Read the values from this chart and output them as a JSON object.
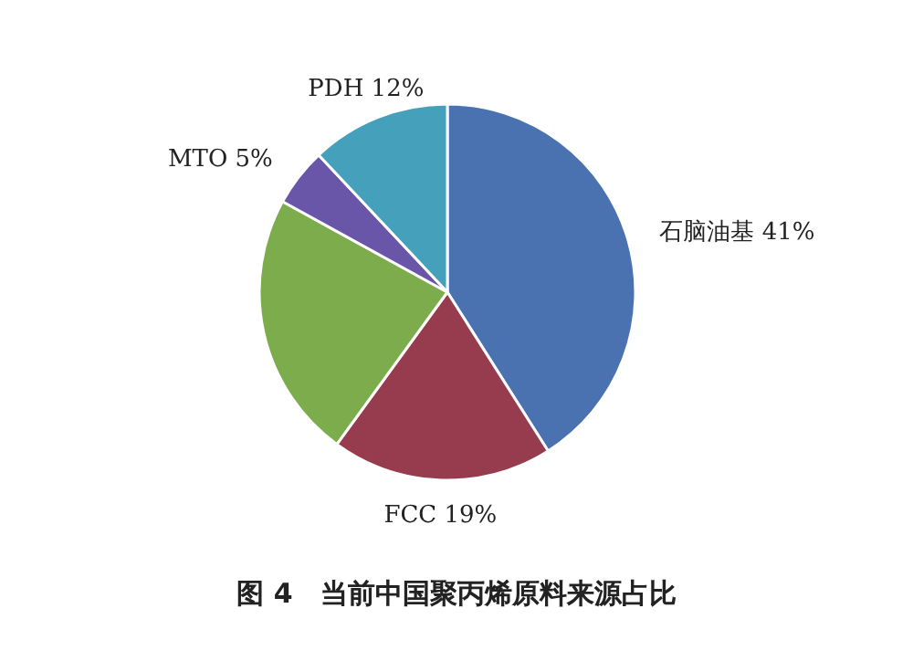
{
  "chart_data": {
    "type": "pie",
    "title": "图 4　当前中国聚丙烯原料来源占比",
    "categories": [
      "石脑油基",
      "FCC",
      null,
      "MTO",
      "PDH"
    ],
    "values": [
      41,
      19,
      23,
      5,
      12
    ],
    "value_labels": [
      "41%",
      "19%",
      null,
      "5%",
      "12%"
    ],
    "colors": [
      "#4a72b0",
      "#963c4e",
      "#7cac4c",
      "#6a56a8",
      "#45a0bb"
    ],
    "legend": false
  }
}
